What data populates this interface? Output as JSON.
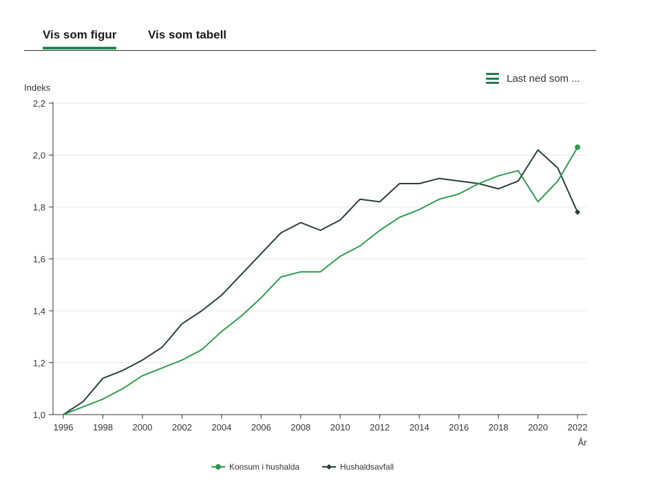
{
  "tabs": [
    {
      "label": "Vis som figur",
      "active": true
    },
    {
      "label": "Vis som tabell",
      "active": false
    }
  ],
  "download": {
    "label": "Last ned som ...",
    "icon": "hamburger-menu-icon"
  },
  "colors": {
    "konsum": "#2e9a4f",
    "avfall": "#263d3f",
    "accent": "#1f8a4c"
  },
  "chart_data": {
    "type": "line",
    "ylabel": "Indeks",
    "xlabel": "År",
    "ylim": [
      1.0,
      2.2
    ],
    "yticks": [
      "1,0",
      "1,2",
      "1,4",
      "1,6",
      "1,8",
      "2,0",
      "2,2"
    ],
    "xticks": [
      "1996",
      "1998",
      "2000",
      "2002",
      "2004",
      "2006",
      "2008",
      "2010",
      "2012",
      "2014",
      "2016",
      "2018",
      "2020",
      "2022"
    ],
    "grid": true,
    "legend_position": "bottom-center",
    "x": [
      1996,
      1997,
      1998,
      1999,
      2000,
      2001,
      2002,
      2003,
      2004,
      2005,
      2006,
      2007,
      2008,
      2009,
      2010,
      2011,
      2012,
      2013,
      2014,
      2015,
      2016,
      2017,
      2018,
      2019,
      2020,
      2021,
      2022
    ],
    "series": [
      {
        "name": "Konsum i hushalda",
        "marker": "circle",
        "values": [
          1.0,
          1.03,
          1.06,
          1.1,
          1.15,
          1.18,
          1.21,
          1.25,
          1.32,
          1.38,
          1.45,
          1.53,
          1.55,
          1.55,
          1.61,
          1.65,
          1.71,
          1.76,
          1.79,
          1.83,
          1.85,
          1.89,
          1.92,
          1.94,
          1.82,
          1.9,
          2.03
        ]
      },
      {
        "name": "Hushaldsavfall",
        "marker": "diamond",
        "values": [
          1.0,
          1.05,
          1.14,
          1.17,
          1.21,
          1.26,
          1.35,
          1.4,
          1.46,
          1.54,
          1.62,
          1.7,
          1.74,
          1.71,
          1.75,
          1.83,
          1.82,
          1.89,
          1.89,
          1.91,
          1.9,
          1.89,
          1.87,
          1.9,
          2.02,
          1.95,
          1.78
        ]
      }
    ]
  }
}
